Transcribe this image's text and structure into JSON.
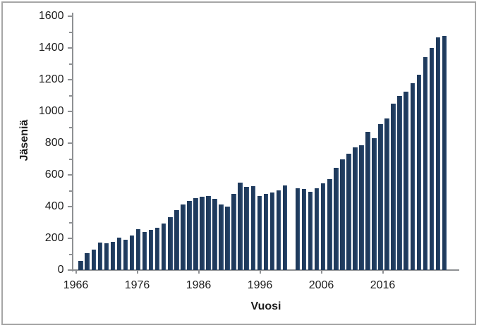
{
  "chart_data": {
    "type": "bar",
    "title": "",
    "xlabel": "Vuosi",
    "ylabel": "Jäseniä",
    "ylim": [
      0,
      1600
    ],
    "y_major_step": 200,
    "y_minor_step": 100,
    "y_tick_labels": [
      "0",
      "200",
      "400",
      "600",
      "800",
      "1000",
      "1200",
      "1400",
      "1600"
    ],
    "x_tick_labels": [
      "1966",
      "1976",
      "1986",
      "1996",
      "2006",
      "2016"
    ],
    "grid": "off",
    "legend": "none",
    "bar_color": "#1f3a5c",
    "axis_color": "#8e9093",
    "series": [
      {
        "name": "Jäseniä",
        "x": [
          1967,
          1968,
          1969,
          1970,
          1971,
          1972,
          1973,
          1974,
          1975,
          1976,
          1977,
          1978,
          1979,
          1980,
          1981,
          1982,
          1983,
          1984,
          1985,
          1986,
          1987,
          1988,
          1989,
          1990,
          1991,
          1992,
          1993,
          1994,
          1995,
          1996,
          1997,
          1998,
          1999,
          2000,
          2001,
          2002,
          2003,
          2004,
          2005,
          2006,
          2007,
          2008,
          2009,
          2010,
          2011,
          2012,
          2013,
          2014,
          2015,
          2016,
          2017,
          2018,
          2019,
          2020,
          2021,
          2022,
          2023,
          2024
        ],
        "values": [
          60,
          105,
          127,
          173,
          167,
          177,
          203,
          192,
          217,
          260,
          241,
          255,
          266,
          293,
          333,
          376,
          415,
          437,
          455,
          462,
          467,
          450,
          412,
          402,
          482,
          553,
          523,
          528,
          468,
          482,
          491,
          502,
          535,
          null,
          517,
          513,
          493,
          514,
          545,
          575,
          644,
          700,
          733,
          775,
          786,
          870,
          830,
          921,
          956,
          1049,
          1096,
          1123,
          1180,
          1230,
          1342,
          1402,
          1467,
          1476
        ]
      }
    ]
  }
}
